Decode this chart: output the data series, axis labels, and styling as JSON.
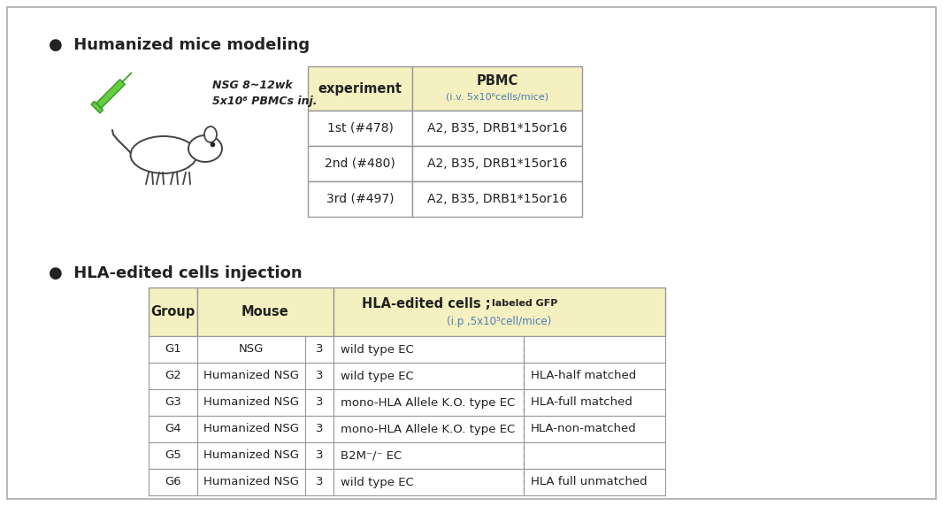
{
  "fig_bg": "#ffffff",
  "section1_title": "●  Humanized mice modeling",
  "section2_title": "●  HLA-edited cells injection",
  "nsg_text_line1": "NSG 8~12wk",
  "nsg_text_line2": "5x10⁶ PBMCs inj.",
  "table1_rows": [
    [
      "1st (#478)",
      "A2, B35, DRB1*15or16"
    ],
    [
      "2nd (#480)",
      "A2, B35, DRB1*15or16"
    ],
    [
      "3rd (#497)",
      "A2, B35, DRB1*15or16"
    ]
  ],
  "table2_rows": [
    [
      "G1",
      "NSG",
      "3",
      "wild type EC",
      ""
    ],
    [
      "G2",
      "Humanized NSG",
      "3",
      "wild type EC",
      "HLA-half matched"
    ],
    [
      "G3",
      "Humanized NSG",
      "3",
      "mono-HLA Allele K.O. type EC",
      "HLA-full matched"
    ],
    [
      "G4",
      "Humanized NSG",
      "3",
      "mono-HLA Allele K.O. type EC",
      "HLA-non-matched"
    ],
    [
      "G5",
      "Humanized NSG",
      "3",
      "B2M⁻/⁻ EC",
      ""
    ],
    [
      "G6",
      "Humanized NSG",
      "3",
      "wild type EC",
      "HLA full unmatched"
    ]
  ],
  "header_bg": "#f5f0c0",
  "border_color": "#999999",
  "text_color": "#222222",
  "blue_color": "#4a7fb5",
  "green_color": "#44aa44"
}
